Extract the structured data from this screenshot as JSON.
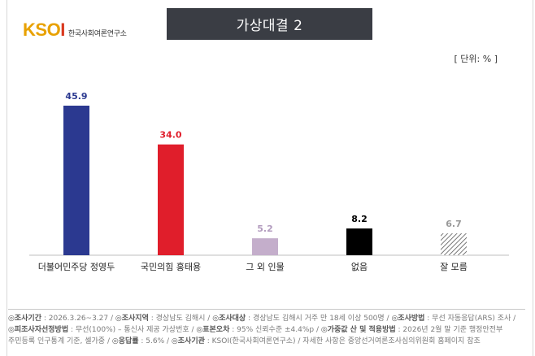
{
  "logo": {
    "mark": "KSOI",
    "subtitle": "한국사회여론연구소"
  },
  "header": {
    "title": "가상대결 2"
  },
  "unit_label": "[ 단위: % ]",
  "colors": {
    "title_bg": "#3a3d44"
  },
  "chart_data": {
    "type": "bar",
    "title": "가상대결 2",
    "categories": [
      "더불어민주당 정영두",
      "국민의힘 홍태용",
      "그 외 인물",
      "없음",
      "잘 모름"
    ],
    "values": [
      45.9,
      34.0,
      5.2,
      8.2,
      6.7
    ],
    "value_labels": [
      "45.9",
      "34.0",
      "5.2",
      "8.2",
      "6.7"
    ],
    "colors": [
      "#2b3990",
      "#e01e2b",
      "#c4aecb",
      "#000000",
      "hatch"
    ],
    "label_colors": [
      "#2b3990",
      "#e01e2b",
      "#b39cbf",
      "#000000",
      "#999999"
    ],
    "ylim": [
      0,
      50
    ],
    "grid": false,
    "legend": "none"
  },
  "notes": [
    [
      {
        "k": "◎조사기간",
        "v": " : 2026.3.26~3.27 / "
      },
      {
        "k": "◎조사지역",
        "v": " : 경상남도 김해시 / "
      },
      {
        "k": "◎조사대상",
        "v": " : 경상남도 김해시 거주 만 18세 이상 500명 / "
      },
      {
        "k": "◎조사방법",
        "v": " : 무선 자동응답(ARS) 조사 /"
      }
    ],
    [
      {
        "k": "◎피조사자선정방법",
        "v": " : 무선(100%) – 통신사 제공 가상번호 / "
      },
      {
        "k": "◎표본오차",
        "v": " : 95% 신뢰수준 ±4.4%p / "
      },
      {
        "k": "◎가중값 산 및 적용방법",
        "v": " : 2026년 2월 말 기준 행정안전부"
      }
    ],
    [
      {
        "k": "",
        "v": "주민등록 인구통계 기준, 셀가중 / "
      },
      {
        "k": "◎응답률",
        "v": " : 5.6% / "
      },
      {
        "k": "◎조사기관",
        "v": " : KSOI(한국사회여론연구소) / 자세한 사항은 중앙선거여론조사심의위원회 홈페이지 참조"
      }
    ]
  ]
}
